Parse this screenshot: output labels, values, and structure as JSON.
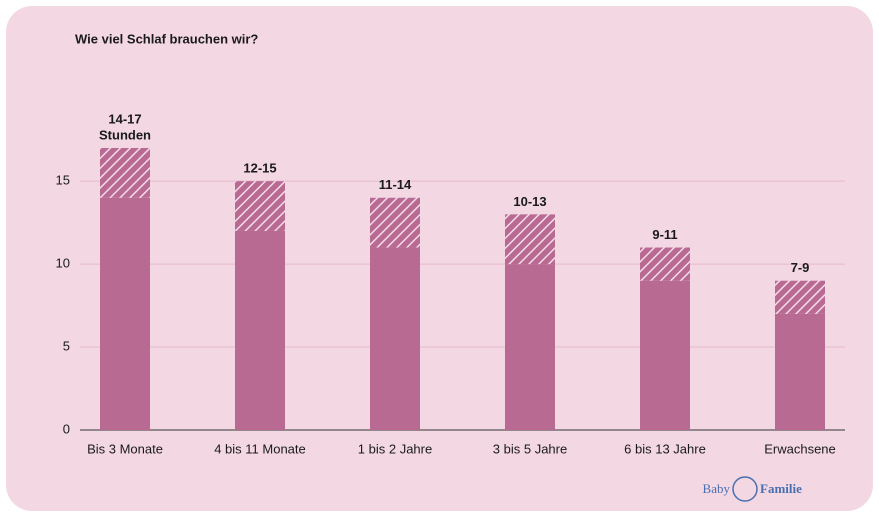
{
  "chart_data": {
    "type": "bar",
    "title": "Wie viel Schlaf brauchen wir?",
    "categories": [
      "Bis 3 Monate",
      "4 bis 11 Monate",
      "1 bis 2 Jahre",
      "3 bis 5 Jahre",
      "6 bis 13 Jahre",
      "Erwachsene"
    ],
    "series": [
      {
        "color": "#b96a93",
        "values": [
          14,
          12,
          11,
          10,
          9,
          7
        ]
      },
      {
        "color": "#b96a93",
        "hatched": true,
        "values": [
          3,
          3,
          3,
          3,
          2,
          2
        ]
      }
    ],
    "range_labels": [
      "14-17",
      "12-15",
      "11-14",
      "10-13",
      "9-11",
      "7-9"
    ],
    "unit_label": "Stunden",
    "ylim": [
      0,
      17
    ],
    "yticks": [
      0,
      5,
      10,
      15
    ],
    "grid": true,
    "logo": [
      "Baby",
      "Familie"
    ]
  }
}
